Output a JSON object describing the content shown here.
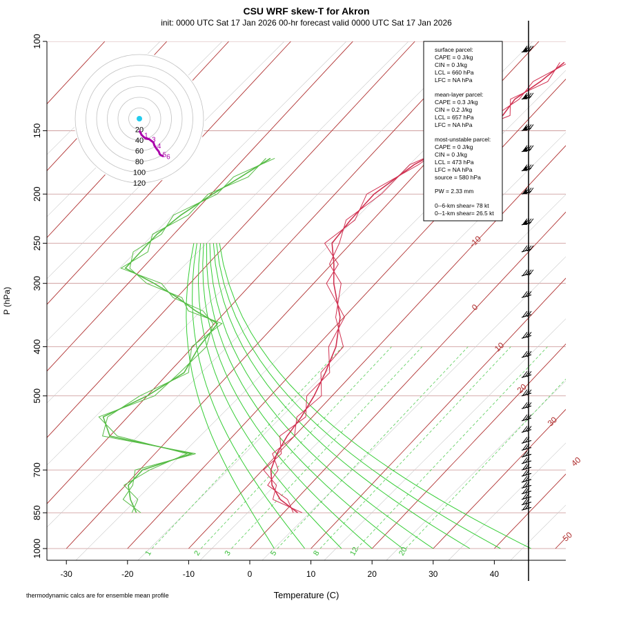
{
  "title": "CSU WRF skew-T for Akron",
  "subtitle": "init: 0000 UTC Sat 17 Jan 2026     00-hr forecast valid 0000 UTC Sat 17 Jan 2026",
  "xlabel": "Temperature (C)",
  "ylabel": "P (hPa)",
  "footnote": "thermodynamic calcs are for ensemble mean profile",
  "colors": {
    "isotherm": "#b03030",
    "isobar": "#c89090",
    "dry_adiabat": "#c8c8c8",
    "moist_adiabat": "#33cc33",
    "mixing_ratio": "#55cc55",
    "temperature": "#d03050",
    "dewpoint": "#55bb44",
    "hodograph_line": "#aa00aa",
    "hodograph_dot": "#22ccee"
  },
  "stats": {
    "surface_header": "surface parcel:",
    "surface_lines": [
      "CAPE = 0 J/kg",
      "CIN = 0 J/kg",
      "LCL = 660 hPa",
      "LFC = NA hPa"
    ],
    "mean_header": "mean-layer parcel:",
    "mean_lines": [
      "CAPE = 0.3 J/kg",
      "CIN = 0.2 J/kg",
      "LCL = 657 hPa",
      "LFC = NA hPa"
    ],
    "mu_header": "most-unstable parcel:",
    "mu_lines": [
      "CAPE = 0 J/kg",
      "CIN = 0 J/kg",
      "LCL = 473 hPa",
      "LFC = NA hPa",
      "source = 580 hPa"
    ],
    "pw": "PW =  2.33 mm",
    "shear6": "0--6-km shear= 78 kt",
    "shear1": "0--1-km shear= 26.5 kt"
  },
  "chart_data": {
    "type": "line",
    "chart_kind": "skew-T log-p diagram",
    "x_ticks": [
      "-30",
      "-20",
      "-10",
      "0",
      "10",
      "20",
      "30",
      "40"
    ],
    "x_tick_values": [
      -30,
      -20,
      -10,
      0,
      10,
      20,
      30,
      40
    ],
    "y_ticks": [
      "100",
      "150",
      "200",
      "250",
      "300",
      "400",
      "500",
      "700",
      "850",
      "1000"
    ],
    "y_tick_values": [
      100,
      150,
      200,
      250,
      300,
      400,
      500,
      700,
      850,
      1000
    ],
    "xlim": [
      -33,
      52
    ],
    "ylim_hpa": [
      1000,
      100
    ],
    "y_scale": "log",
    "isotherm_labels": [
      {
        "text": "-10",
        "t": -10,
        "p": 255
      },
      {
        "text": "0",
        "t": 0,
        "p": 340
      },
      {
        "text": "10",
        "t": 10,
        "p": 410
      },
      {
        "text": "20",
        "t": 20,
        "p": 495
      },
      {
        "text": "30",
        "t": 30,
        "p": 575
      },
      {
        "text": "40",
        "t": 40,
        "p": 690
      },
      {
        "text": "50",
        "t": 50,
        "p": 970
      }
    ],
    "mixing_ratio_labels": [
      "1",
      "2",
      "3",
      "5",
      "8",
      "12",
      "20"
    ],
    "mixing_ratio_bottom_t": [
      -16,
      -8,
      -3,
      4.5,
      11.5,
      17.5,
      25.5
    ],
    "moist_adiabat_bottom_t": [
      4,
      9,
      15,
      20,
      25,
      30,
      36,
      41,
      46
    ],
    "series": [
      {
        "name": "temperature",
        "p": [
          850,
          800,
          750,
          700,
          650,
          600,
          550,
          500,
          450,
          400,
          350,
          300,
          275,
          250,
          225,
          200,
          175,
          155,
          150,
          140,
          130,
          120,
          110
        ],
        "t": [
          2.4,
          -2.5,
          -6.0,
          -8.5,
          -10.0,
          -11.0,
          -11.6,
          -12.7,
          -14.4,
          -16.6,
          -20.4,
          -26.6,
          -29.5,
          -33.0,
          -33.5,
          -33.6,
          -31.5,
          -27.5,
          -26.5,
          -24.5,
          -25.0,
          -23.5,
          -22.5
        ]
      },
      {
        "name": "dewpoint",
        "p": [
          850,
          800,
          750,
          700,
          650,
          600,
          550,
          500,
          450,
          400,
          360,
          340,
          320,
          300,
          280,
          260,
          240,
          220,
          200,
          185,
          170
        ],
        "t": [
          -24,
          -27,
          -29.5,
          -29.5,
          -24,
          -40,
          -44,
          -40,
          -37.5,
          -39,
          -39.5,
          -45,
          -50,
          -56,
          -63,
          -63,
          -63,
          -62,
          -60,
          -58,
          -56
        ]
      }
    ],
    "hodograph": {
      "ring_labels": [
        "20",
        "40",
        "60",
        "80",
        "100",
        "120"
      ],
      "u": [
        0,
        2,
        4,
        8,
        12,
        18,
        22,
        26,
        28,
        32,
        36,
        38,
        40,
        45
      ],
      "v": [
        -22,
        -26,
        -30,
        -34,
        -37,
        -38,
        -41,
        -44,
        -50,
        -56,
        -61,
        -66,
        -68,
        -70
      ],
      "point_labels": [
        "1",
        "3",
        "4",
        "5",
        "6"
      ]
    },
    "wind_barb_levels_hpa": [
      105,
      130,
      150,
      165,
      180,
      200,
      230,
      260,
      290,
      320,
      350,
      385,
      420,
      460,
      500,
      530,
      560,
      590,
      620,
      640,
      660,
      680,
      700,
      720,
      740,
      760,
      780,
      800,
      820,
      840
    ]
  }
}
